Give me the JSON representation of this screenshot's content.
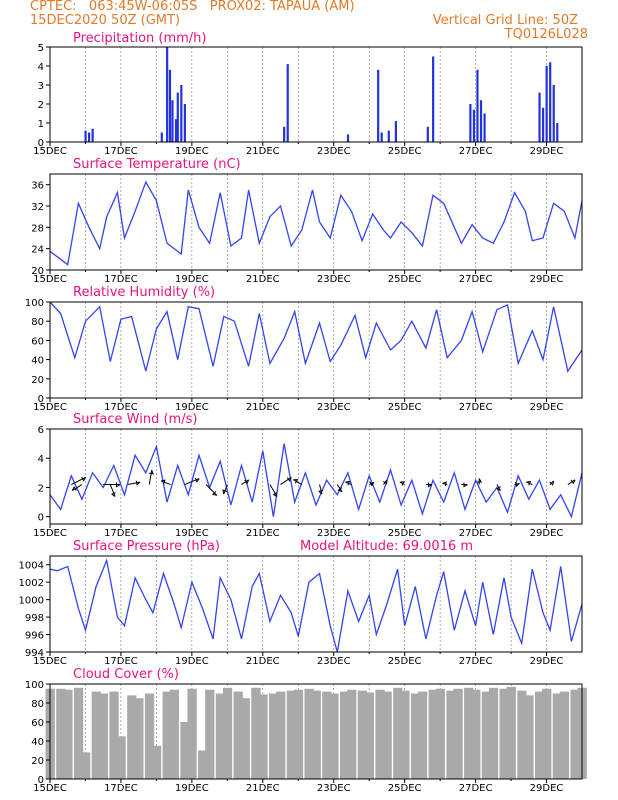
{
  "header": {
    "line1_left": "CPTEC:   063:45W-06:05S   PROX02: TAPAUA (AM)",
    "line2_left": "15DEC2020 50Z (GMT)",
    "line2_right": "Vertical Grid Line: 50Z",
    "line3_right": "TQ0126L028"
  },
  "colors": {
    "line": "#3344ee",
    "bar": "#2233dd",
    "cloud": "#a9a9a9",
    "title": "#e6147e",
    "header": "#e07a2a",
    "vector": "#000000"
  },
  "chart_data": [
    {
      "type": "bar",
      "title": "Precipitation (mm/h)",
      "ylim": [
        0,
        5
      ],
      "yticks": [
        "0",
        "1",
        "2",
        "3",
        "4",
        "5"
      ],
      "x_tick_labels": [
        "15DEC",
        "17DEC",
        "19DEC",
        "21DEC",
        "23DEC",
        "25DEC",
        "27DEC",
        "29DEC"
      ],
      "x_range_days": [
        15,
        30
      ],
      "bars": [
        [
          16.0,
          0.6
        ],
        [
          16.1,
          0.5
        ],
        [
          16.2,
          0.7
        ],
        [
          18.15,
          0.5
        ],
        [
          18.3,
          5.0
        ],
        [
          18.38,
          3.8
        ],
        [
          18.45,
          2.2
        ],
        [
          18.55,
          1.2
        ],
        [
          18.6,
          2.6
        ],
        [
          18.7,
          3.0
        ],
        [
          18.8,
          2.0
        ],
        [
          21.6,
          0.8
        ],
        [
          21.7,
          4.1
        ],
        [
          23.4,
          0.4
        ],
        [
          24.25,
          3.8
        ],
        [
          24.35,
          0.5
        ],
        [
          24.55,
          0.6
        ],
        [
          24.75,
          1.1
        ],
        [
          25.65,
          0.8
        ],
        [
          25.8,
          4.5
        ],
        [
          26.85,
          2.0
        ],
        [
          26.95,
          1.7
        ],
        [
          27.05,
          3.8
        ],
        [
          27.15,
          2.2
        ],
        [
          27.25,
          1.5
        ],
        [
          28.8,
          2.6
        ],
        [
          28.9,
          1.8
        ],
        [
          29.0,
          4.0
        ],
        [
          29.1,
          4.2
        ],
        [
          29.2,
          3.0
        ],
        [
          29.3,
          1.0
        ]
      ]
    },
    {
      "type": "line",
      "title": "Surface Temperature (nC)",
      "ylim": [
        20,
        38
      ],
      "yticks": [
        "20",
        "24",
        "28",
        "32",
        "36"
      ],
      "x_tick_labels": [
        "15DEC",
        "17DEC",
        "19DEC",
        "21DEC",
        "23DEC",
        "25DEC",
        "27DEC",
        "29DEC"
      ],
      "x": [
        15.0,
        15.3,
        15.5,
        15.8,
        16.1,
        16.4,
        16.6,
        16.9,
        17.1,
        17.4,
        17.7,
        18.0,
        18.3,
        18.7,
        18.9,
        19.2,
        19.5,
        19.8,
        20.1,
        20.4,
        20.6,
        20.9,
        21.2,
        21.5,
        21.8,
        22.1,
        22.4,
        22.6,
        22.9,
        23.2,
        23.5,
        23.8,
        24.1,
        24.4,
        24.6,
        24.9,
        25.2,
        25.5,
        25.8,
        26.1,
        26.4,
        26.6,
        26.9,
        27.2,
        27.5,
        27.8,
        28.1,
        28.4,
        28.6,
        28.9,
        29.2,
        29.5,
        29.8,
        30.0
      ],
      "y": [
        23.5,
        22.0,
        21.0,
        32.5,
        28.0,
        24.0,
        30.0,
        34.5,
        26.0,
        31.0,
        36.5,
        33.0,
        25.0,
        23.0,
        35.0,
        28.0,
        25.0,
        34.5,
        24.5,
        26.0,
        35.0,
        25.0,
        30.0,
        32.0,
        24.5,
        27.5,
        35.0,
        29.0,
        26.0,
        34.0,
        31.0,
        25.5,
        30.5,
        27.5,
        26.0,
        29.0,
        27.0,
        24.5,
        34.0,
        32.5,
        28.0,
        25.0,
        28.5,
        26.0,
        25.0,
        29.0,
        34.5,
        31.0,
        25.5,
        26.0,
        32.5,
        31.0,
        26.0,
        33.0
      ]
    },
    {
      "type": "line",
      "title": "Relative Humidity (%)",
      "ylim": [
        0,
        100
      ],
      "yticks": [
        "0",
        "20",
        "40",
        "60",
        "80",
        "100"
      ],
      "x_tick_labels": [
        "15DEC",
        "17DEC",
        "19DEC",
        "21DEC",
        "23DEC",
        "25DEC",
        "27DEC",
        "29DEC"
      ],
      "x": [
        15.0,
        15.3,
        15.7,
        16.0,
        16.4,
        16.7,
        17.0,
        17.3,
        17.7,
        18.0,
        18.3,
        18.6,
        18.9,
        19.2,
        19.6,
        19.9,
        20.2,
        20.6,
        20.9,
        21.2,
        21.6,
        21.9,
        22.2,
        22.6,
        22.9,
        23.2,
        23.6,
        23.9,
        24.2,
        24.6,
        24.9,
        25.2,
        25.6,
        25.9,
        26.2,
        26.6,
        26.9,
        27.2,
        27.6,
        27.9,
        28.2,
        28.6,
        28.9,
        29.2,
        29.6,
        30.0
      ],
      "y": [
        100,
        88,
        42,
        80,
        95,
        38,
        82,
        85,
        28,
        72,
        90,
        40,
        95,
        93,
        33,
        85,
        80,
        33,
        88,
        36,
        62,
        90,
        36,
        78,
        38,
        55,
        86,
        42,
        78,
        50,
        60,
        80,
        52,
        92,
        42,
        60,
        90,
        48,
        92,
        97,
        36,
        70,
        40,
        95,
        28,
        50
      ]
    },
    {
      "type": "line",
      "title": "Surface Wind (m/s)",
      "ylim": [
        -0.5,
        6
      ],
      "yticks": [
        "0",
        "2",
        "4",
        "6"
      ],
      "x_tick_labels": [
        "15DEC",
        "17DEC",
        "19DEC",
        "21DEC",
        "23DEC",
        "25DEC",
        "27DEC",
        "29DEC"
      ],
      "x": [
        15.0,
        15.3,
        15.6,
        15.9,
        16.2,
        16.5,
        16.8,
        17.1,
        17.4,
        17.7,
        18.0,
        18.3,
        18.6,
        18.9,
        19.2,
        19.5,
        19.8,
        20.1,
        20.4,
        20.7,
        21.0,
        21.3,
        21.6,
        21.9,
        22.2,
        22.5,
        22.8,
        23.1,
        23.4,
        23.7,
        24.0,
        24.3,
        24.6,
        24.9,
        25.2,
        25.5,
        25.8,
        26.1,
        26.4,
        26.7,
        27.0,
        27.3,
        27.6,
        27.9,
        28.2,
        28.5,
        28.8,
        29.1,
        29.4,
        29.7,
        30.0
      ],
      "y": [
        1.5,
        0.5,
        2.8,
        1.2,
        3.0,
        2.0,
        3.5,
        1.5,
        4.2,
        3.0,
        4.8,
        1.0,
        3.5,
        1.5,
        4.2,
        2.0,
        3.8,
        0.8,
        3.5,
        1.0,
        4.5,
        0.0,
        5.0,
        1.0,
        3.0,
        0.8,
        2.5,
        1.5,
        3.0,
        0.5,
        2.8,
        1.0,
        3.2,
        0.8,
        2.5,
        0.2,
        2.5,
        1.0,
        3.0,
        0.5,
        2.5,
        1.0,
        2.0,
        0.3,
        2.8,
        1.2,
        2.5,
        0.5,
        1.5,
        0.0,
        3.0
      ],
      "vectors": [
        [
          15.6,
          1.2,
          0.6
        ],
        [
          15.9,
          -0.8,
          -0.5
        ],
        [
          16.5,
          1.4,
          0.0
        ],
        [
          16.7,
          0.4,
          -1.0
        ],
        [
          17.2,
          1.0,
          0.2
        ],
        [
          17.8,
          0.2,
          1.2
        ],
        [
          18.4,
          -0.8,
          0.3
        ],
        [
          18.8,
          1.2,
          0.5
        ],
        [
          19.4,
          0.9,
          -0.9
        ],
        [
          20.0,
          -0.3,
          -0.8
        ],
        [
          20.4,
          0.6,
          0.4
        ],
        [
          21.2,
          0.6,
          -1.0
        ],
        [
          21.5,
          0.9,
          0.6
        ],
        [
          22.1,
          -0.7,
          0.4
        ],
        [
          22.6,
          0.2,
          -0.8
        ],
        [
          23.1,
          0.4,
          -0.6
        ],
        [
          23.5,
          -0.5,
          0.2
        ],
        [
          24.0,
          0.4,
          0.2
        ],
        [
          24.4,
          0.3,
          0.4
        ],
        [
          25.0,
          -0.4,
          0.2
        ],
        [
          25.6,
          0.5,
          0.0
        ],
        [
          26.2,
          -0.4,
          0.1
        ],
        [
          26.6,
          0.5,
          0.0
        ],
        [
          27.1,
          0.0,
          0.5
        ],
        [
          27.6,
          0.3,
          -0.5
        ],
        [
          28.1,
          0.4,
          0.1
        ],
        [
          28.6,
          -0.5,
          0.2
        ],
        [
          29.1,
          0.3,
          0.3
        ],
        [
          29.6,
          0.6,
          0.4
        ]
      ]
    },
    {
      "type": "line",
      "title": "Surface Pressure (hPa)",
      "annotation": "Model Altitude: 69.0016 m",
      "ylim": [
        994,
        1005
      ],
      "yticks": [
        "994",
        "996",
        "998",
        "1000",
        "1002",
        "1004"
      ],
      "x_tick_labels": [
        "15DEC",
        "17DEC",
        "19DEC",
        "21DEC",
        "23DEC",
        "25DEC",
        "27DEC",
        "29DEC"
      ],
      "x": [
        15.0,
        15.2,
        15.5,
        15.8,
        16.0,
        16.3,
        16.6,
        16.9,
        17.1,
        17.4,
        17.7,
        17.9,
        18.2,
        18.5,
        18.7,
        19.0,
        19.3,
        19.6,
        19.8,
        20.1,
        20.4,
        20.7,
        20.9,
        21.2,
        21.5,
        21.8,
        22.0,
        22.3,
        22.6,
        22.9,
        23.1,
        23.4,
        23.7,
        24.0,
        24.2,
        24.5,
        24.8,
        25.0,
        25.3,
        25.6,
        25.9,
        26.1,
        26.4,
        26.7,
        27.0,
        27.2,
        27.5,
        27.8,
        28.0,
        28.3,
        28.6,
        28.9,
        29.1,
        29.4,
        29.7,
        30.0
      ],
      "y": [
        1003.5,
        1003.3,
        1003.8,
        999.0,
        996.5,
        1001.5,
        1004.5,
        998.0,
        997.0,
        1002.5,
        1000.0,
        998.5,
        1003.0,
        999.5,
        996.8,
        1002.0,
        999.0,
        995.5,
        1002.5,
        1000.0,
        995.5,
        1001.5,
        1003.0,
        997.5,
        1000.5,
        998.5,
        995.8,
        1002.0,
        1003.0,
        997.0,
        994.0,
        1001.0,
        997.5,
        1000.5,
        996.0,
        999.5,
        1003.5,
        997.0,
        1001.5,
        995.5,
        1000.5,
        1003.2,
        996.5,
        1001.0,
        997.0,
        1002.0,
        996.0,
        1002.5,
        998.0,
        995.0,
        1003.5,
        998.5,
        996.5,
        1003.8,
        995.2,
        999.5
      ]
    },
    {
      "type": "area",
      "title": "Cloud Cover (%)",
      "ylim": [
        0,
        100
      ],
      "yticks": [
        "0",
        "20",
        "40",
        "60",
        "80",
        "100"
      ],
      "x_tick_labels": [
        "15DEC",
        "17DEC",
        "19DEC",
        "21DEC",
        "23DEC",
        "25DEC",
        "27DEC",
        "29DEC"
      ],
      "x": [
        15.0,
        15.3,
        15.5,
        15.8,
        16.0,
        16.3,
        16.5,
        16.8,
        17.0,
        17.3,
        17.5,
        17.8,
        18.0,
        18.3,
        18.5,
        18.8,
        19.0,
        19.3,
        19.5,
        19.8,
        20.0,
        20.3,
        20.5,
        20.8,
        21.0,
        21.3,
        21.5,
        21.8,
        22.0,
        22.3,
        22.5,
        22.8,
        23.0,
        23.3,
        23.5,
        23.8,
        24.0,
        24.3,
        24.5,
        24.8,
        25.0,
        25.3,
        25.5,
        25.8,
        26.0,
        26.3,
        26.5,
        26.8,
        27.0,
        27.3,
        27.5,
        27.8,
        28.0,
        28.3,
        28.5,
        28.8,
        29.0,
        29.3,
        29.5,
        29.8,
        30.0
      ],
      "y": [
        95,
        95,
        94,
        96,
        28,
        92,
        90,
        92,
        45,
        88,
        85,
        90,
        35,
        92,
        94,
        60,
        95,
        30,
        94,
        90,
        96,
        92,
        85,
        96,
        89,
        90,
        92,
        93,
        94,
        95,
        93,
        92,
        90,
        92,
        94,
        93,
        91,
        94,
        92,
        96,
        93,
        90,
        92,
        94,
        95,
        93,
        95,
        96,
        94,
        92,
        96,
        95,
        97,
        93,
        88,
        92,
        95,
        90,
        92,
        94,
        96
      ]
    }
  ]
}
